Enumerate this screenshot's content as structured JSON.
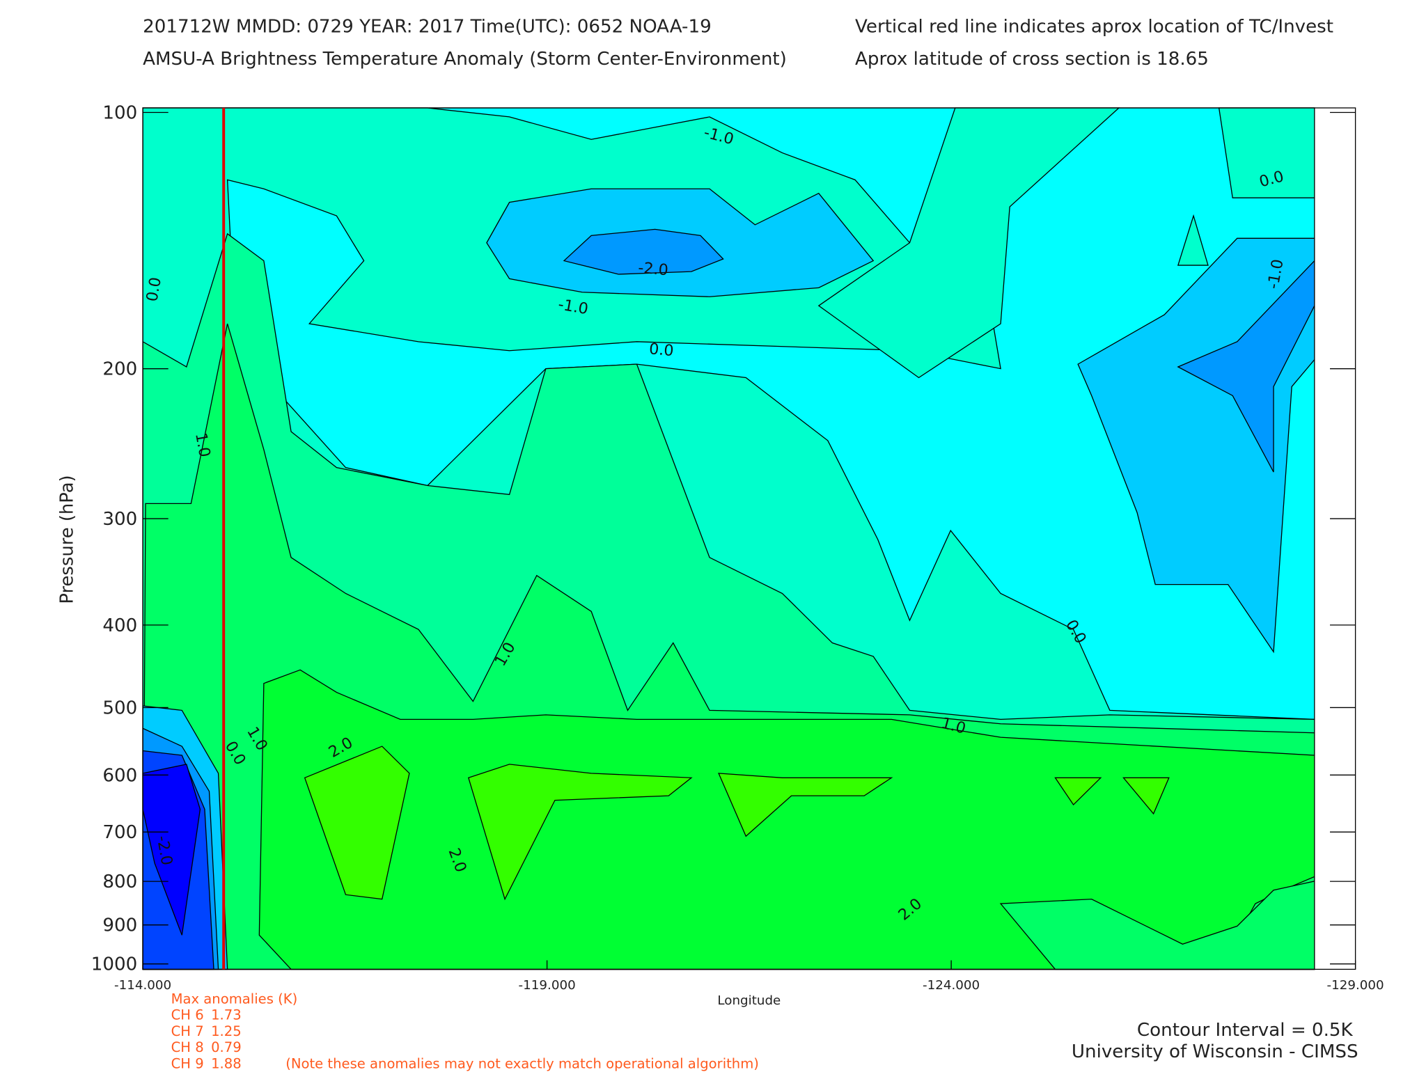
{
  "header": {
    "line1": "201712W  MMDD: 0729 YEAR: 2017 Time(UTC): 0652 NOAA-19",
    "line2": "AMSU-A Brightness Temperature Anomaly (Storm Center-Environment)",
    "note1": "Vertical red line indicates aprox location of TC/Invest",
    "note2": "Aprox latitude of cross section is 18.65"
  },
  "chart_data": {
    "type": "contour",
    "xlabel": "Longitude",
    "ylabel": "Pressure (hPa)",
    "xlim": [
      -114,
      -129
    ],
    "xticks": [
      {
        "value": -114,
        "label": "-114.000"
      },
      {
        "value": -119,
        "label": "-119.000"
      },
      {
        "value": -124,
        "label": "-124.000"
      },
      {
        "value": -129,
        "label": "-129.000"
      }
    ],
    "ylim": [
      1000,
      100
    ],
    "yscale": "log",
    "yticks": [
      100,
      200,
      300,
      400,
      500,
      600,
      700,
      800,
      900,
      1000
    ],
    "tc_longitude": -115,
    "tc_line_color": "#e00000",
    "contour_labels": [
      "-1.0",
      "0.0",
      "-2.0",
      "-1.0",
      "0.0",
      "0.0",
      "1.0",
      "1.0",
      "0.0",
      "1.0",
      "2.0",
      "1.0",
      "0.0",
      "2.0",
      "2.0",
      "-2.0",
      "-1.0"
    ]
  },
  "anomalies": {
    "title": "Max anomalies (K)",
    "rows": [
      {
        "channel": "CH 6",
        "value": 1.73
      },
      {
        "channel": "CH 7",
        "value": 1.25
      },
      {
        "channel": "CH 8",
        "value": 0.79
      },
      {
        "channel": "CH 9",
        "value": 1.88
      }
    ],
    "note": "(Note these anomalies may not exactly match operational algorithm)"
  },
  "footer": {
    "interval": "Contour Interval = 0.5K",
    "credit": "University of Wisconsin - CIMSS"
  }
}
